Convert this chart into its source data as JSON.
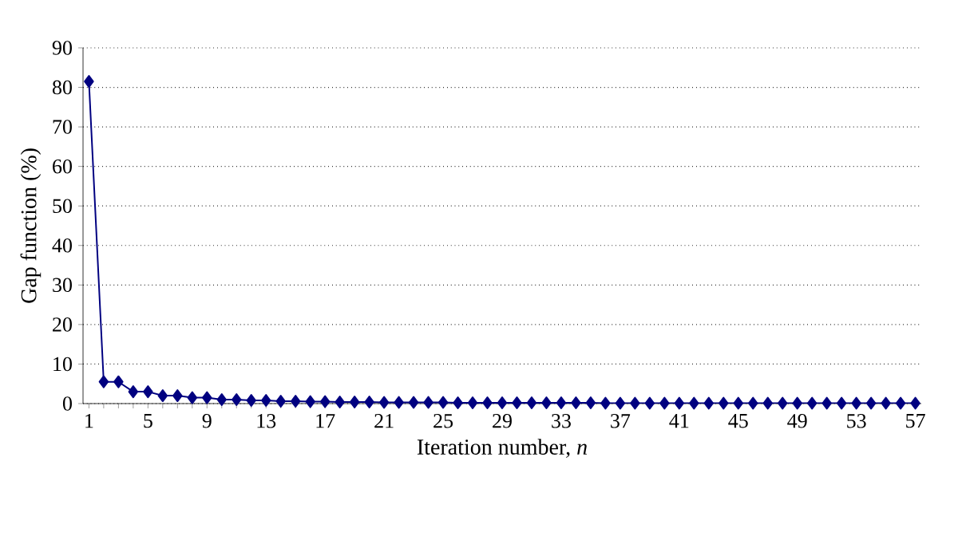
{
  "chart_data": {
    "type": "line",
    "xlabel": "Iteration number, *n*",
    "ylabel": "Gap function (%)",
    "categories": [
      "1",
      null,
      null,
      null,
      "5",
      null,
      null,
      null,
      "9",
      null,
      null,
      null,
      "13",
      null,
      null,
      null,
      "17",
      null,
      null,
      null,
      "21",
      null,
      null,
      null,
      "25",
      null,
      null,
      null,
      "29",
      null,
      null,
      null,
      "33",
      null,
      null,
      null,
      "37",
      null,
      null,
      null,
      "41",
      null,
      null,
      null,
      "45",
      null,
      null,
      null,
      "49",
      null,
      null,
      null,
      "53",
      null,
      null,
      null,
      "57"
    ],
    "values": [
      81.5,
      5.5,
      5.5,
      3,
      3,
      2,
      2,
      1.5,
      1.5,
      1,
      1,
      0.8,
      0.8,
      0.6,
      0.6,
      0.5,
      0.5,
      0.4,
      0.4,
      0.4,
      0.3,
      0.3,
      0.3,
      0.3,
      0.3,
      0.2,
      0.2,
      0.2,
      0.2,
      0.2,
      0.2,
      0.2,
      0.2,
      0.2,
      0.2,
      0.1,
      0.1,
      0.1,
      0.1,
      0.1,
      0.1,
      0.1,
      0.1,
      0.1,
      0.1,
      0.1,
      0.1,
      0.1,
      0.1,
      0.1,
      0.1,
      0.1,
      0.1,
      0.1,
      0.1,
      0.1,
      0.1
    ],
    "color": "#000080",
    "marker": "diamond",
    "line_style": "solid",
    "ylim": [
      0,
      90
    ],
    "yticks": [
      0,
      10,
      20,
      30,
      40,
      50,
      60,
      70,
      80,
      90
    ],
    "grid": "y"
  }
}
